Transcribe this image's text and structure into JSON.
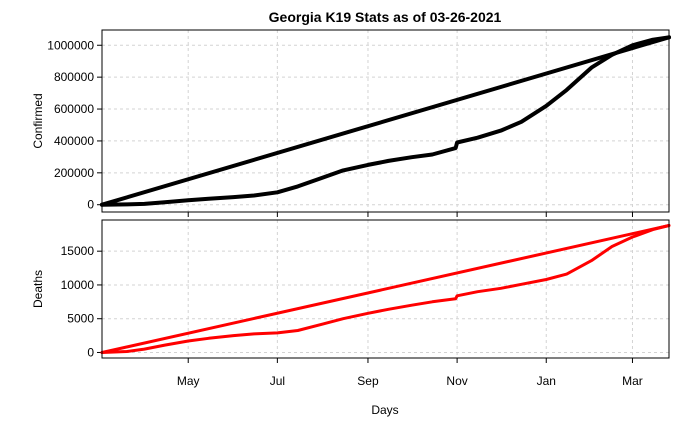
{
  "chart_data": {
    "type": "line",
    "title": "Georgia K19 Stats as of 03-26-2021",
    "xlabel": "Days",
    "x_ticks": [
      "May",
      "Jul",
      "Sep",
      "Nov",
      "Jan",
      "Mar"
    ],
    "x_tick_dates": [
      "2020-05-01",
      "2020-07-01",
      "2020-09-01",
      "2020-11-01",
      "2021-01-01",
      "2021-03-01"
    ],
    "x_range": [
      "2020-03-03",
      "2021-03-26"
    ],
    "grid": true,
    "panels": [
      {
        "ylabel": "Confirmed",
        "ylim": [
          0,
          1050000
        ],
        "y_ticks": [
          "0",
          "200000",
          "400000",
          "600000",
          "800000",
          "1000000"
        ],
        "y_tick_values": [
          0,
          200000,
          400000,
          600000,
          800000,
          1000000
        ],
        "color": "#000000",
        "series": [
          {
            "x": [
              "2020-03-03",
              "2021-03-26"
            ],
            "values": [
              0,
              1050000
            ]
          },
          {
            "x": [
              "2020-03-03",
              "2020-03-20",
              "2020-04-01",
              "2020-04-15",
              "2020-05-01",
              "2020-05-15",
              "2020-06-01",
              "2020-06-15",
              "2020-07-01",
              "2020-07-15",
              "2020-08-01",
              "2020-08-15",
              "2020-09-01",
              "2020-09-15",
              "2020-10-01",
              "2020-10-15",
              "2020-10-31",
              "2020-11-01",
              "2020-11-15",
              "2020-12-01",
              "2020-12-15",
              "2021-01-01",
              "2021-01-15",
              "2021-02-01",
              "2021-02-15",
              "2021-03-01",
              "2021-03-15",
              "2021-03-26"
            ],
            "values": [
              0,
              2000,
              5000,
              16000,
              28000,
              38000,
              48000,
              58000,
              78000,
              115000,
              170000,
              215000,
              250000,
              275000,
              298000,
              315000,
              355000,
              390000,
              420000,
              465000,
              520000,
              620000,
              720000,
              860000,
              940000,
              1000000,
              1035000,
              1050000
            ]
          }
        ]
      },
      {
        "ylabel": "Deaths",
        "ylim": [
          0,
          18800
        ],
        "y_ticks": [
          "0",
          "5000",
          "10000",
          "15000"
        ],
        "y_tick_values": [
          0,
          5000,
          10000,
          15000
        ],
        "color": "#ff0000",
        "series": [
          {
            "x": [
              "2020-03-03",
              "2021-03-26"
            ],
            "values": [
              0,
              18800
            ]
          },
          {
            "x": [
              "2020-03-03",
              "2020-03-20",
              "2020-04-01",
              "2020-04-15",
              "2020-05-01",
              "2020-05-15",
              "2020-06-01",
              "2020-06-15",
              "2020-07-01",
              "2020-07-15",
              "2020-08-01",
              "2020-08-15",
              "2020-09-01",
              "2020-09-15",
              "2020-10-01",
              "2020-10-15",
              "2020-10-31",
              "2020-11-01",
              "2020-11-15",
              "2020-12-01",
              "2020-12-15",
              "2021-01-01",
              "2021-01-15",
              "2021-02-01",
              "2021-02-15",
              "2021-03-01",
              "2021-03-15",
              "2021-03-26"
            ],
            "values": [
              0,
              150,
              500,
              1100,
              1700,
              2100,
              2500,
              2750,
              2900,
              3250,
              4200,
              5000,
              5800,
              6400,
              7000,
              7500,
              7950,
              8400,
              9000,
              9500,
              10100,
              10800,
              11600,
              13600,
              15700,
              17100,
              18200,
              18800
            ]
          }
        ]
      }
    ]
  }
}
